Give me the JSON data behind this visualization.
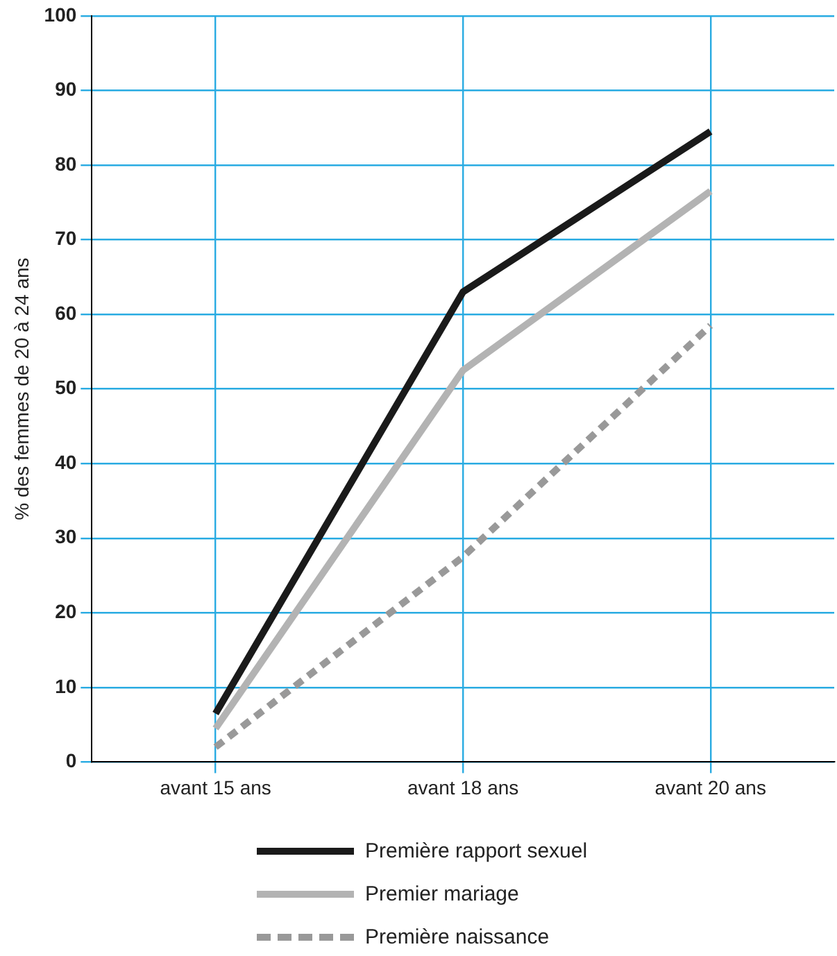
{
  "chart_data": {
    "type": "line",
    "ylabel": "% des femmes de 20 à 24 ans",
    "categories": [
      "avant 15 ans",
      "avant 18 ans",
      "avant 20 ans"
    ],
    "series": [
      {
        "name": "Première rapport sexuel",
        "color": "#1a1a1a",
        "values": [
          6.5,
          63,
          84.5
        ]
      },
      {
        "name": "Premier mariage",
        "color": "#b3b3b3",
        "values": [
          4.5,
          52.5,
          76.5
        ]
      },
      {
        "name": "Première naissance",
        "color": "#999999",
        "values": [
          2,
          27.5,
          58.5
        ],
        "line_style": "dotted"
      }
    ],
    "ylim": [
      0,
      100
    ],
    "yticks": [
      0,
      10,
      20,
      30,
      40,
      50,
      60,
      70,
      80,
      90,
      100
    ],
    "grid": true,
    "legend": "bottom",
    "marker": "none",
    "line_style": "solid"
  }
}
